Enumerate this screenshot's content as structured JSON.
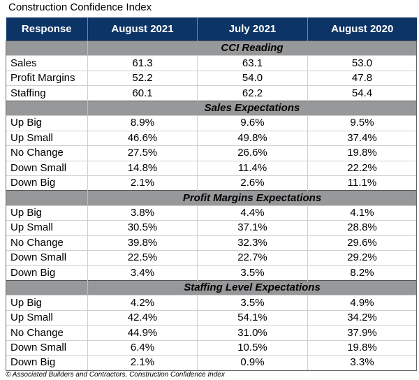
{
  "title": "Construction Confidence Index",
  "headers": [
    "Response",
    "August 2021",
    "July 2021",
    "August 2020"
  ],
  "sections": [
    {
      "label": "CCI Reading",
      "rows": [
        [
          "Sales",
          "61.3",
          "63.1",
          "53.0"
        ],
        [
          "Profit Margins",
          "52.2",
          "54.0",
          "47.8"
        ],
        [
          "Staffing",
          "60.1",
          "62.2",
          "54.4"
        ]
      ]
    },
    {
      "label": "Sales Expectations",
      "rows": [
        [
          "Up Big",
          "8.9%",
          "9.6%",
          "9.5%"
        ],
        [
          "Up Small",
          "46.6%",
          "49.8%",
          "37.4%"
        ],
        [
          "No Change",
          "27.5%",
          "26.6%",
          "19.8%"
        ],
        [
          "Down Small",
          "14.8%",
          "11.4%",
          "22.2%"
        ],
        [
          "Down Big",
          "2.1%",
          "2.6%",
          "11.1%"
        ]
      ]
    },
    {
      "label": "Profit Margins Expectations",
      "rows": [
        [
          "Up Big",
          "3.8%",
          "4.4%",
          "4.1%"
        ],
        [
          "Up Small",
          "30.5%",
          "37.1%",
          "28.8%"
        ],
        [
          "No Change",
          "39.8%",
          "32.3%",
          "29.6%"
        ],
        [
          "Down Small",
          "22.5%",
          "22.7%",
          "29.2%"
        ],
        [
          "Down Big",
          "3.4%",
          "3.5%",
          "8.2%"
        ]
      ]
    },
    {
      "label": "Staffing Level Expectations",
      "rows": [
        [
          "Up Big",
          "4.2%",
          "3.5%",
          "4.9%"
        ],
        [
          "Up Small",
          "42.4%",
          "54.1%",
          "34.2%"
        ],
        [
          "No Change",
          "44.9%",
          "31.0%",
          "37.9%"
        ],
        [
          "Down Small",
          "6.4%",
          "10.5%",
          "19.8%"
        ],
        [
          "Down Big",
          "2.1%",
          "0.9%",
          "3.3%"
        ]
      ]
    }
  ],
  "footer": "© Associated Builders and Contractors, Construction Confidence Index",
  "colors": {
    "header": "#0c3466",
    "section": "#97989a"
  }
}
